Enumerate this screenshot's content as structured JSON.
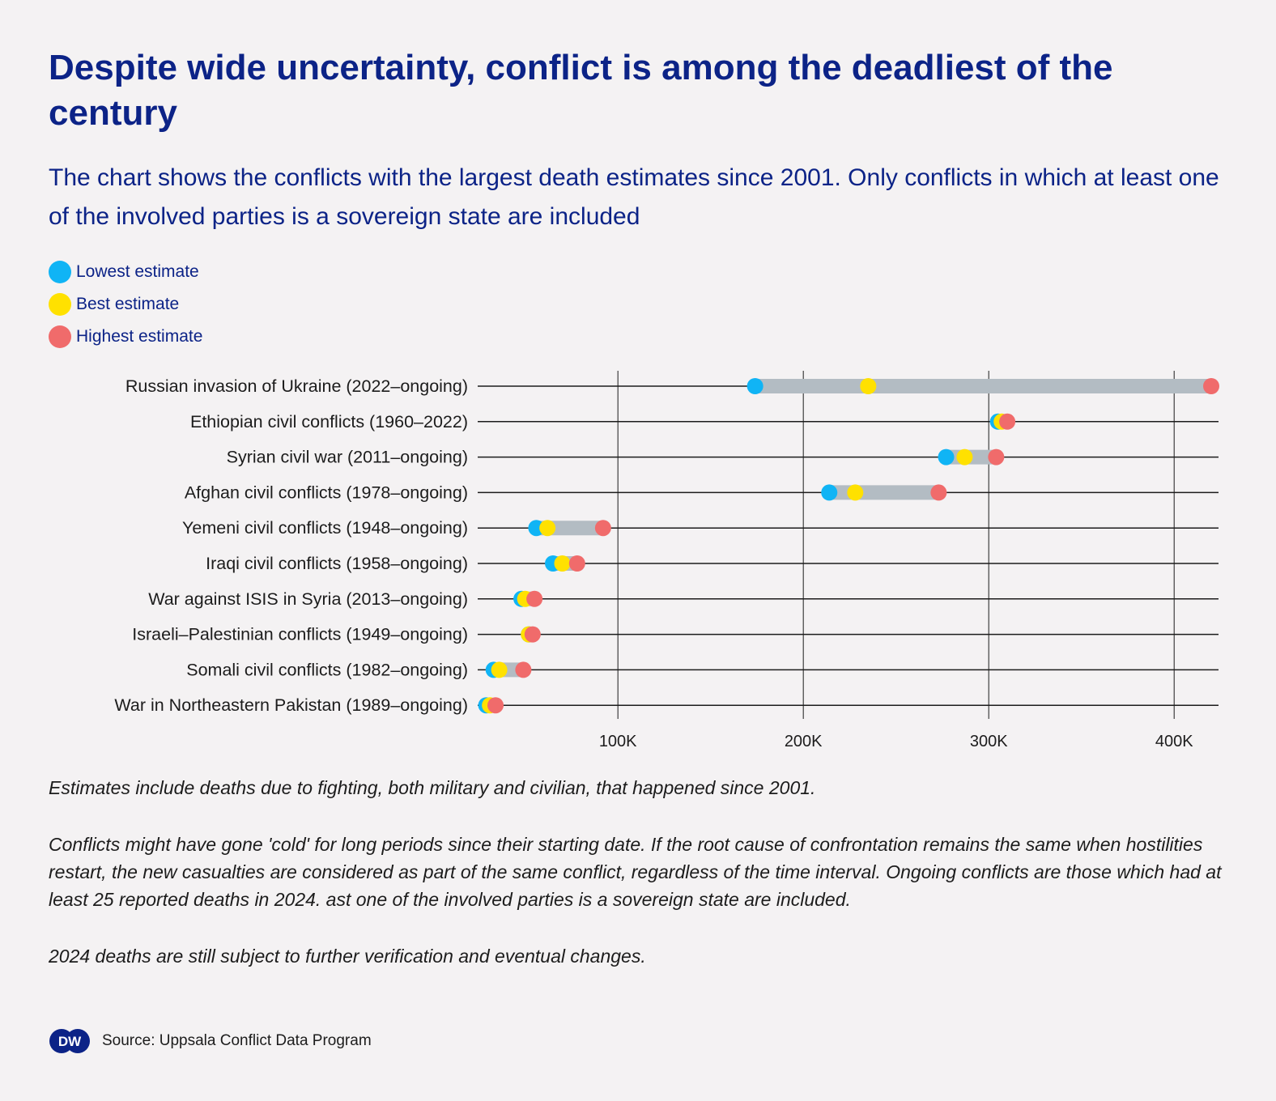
{
  "title": "Despite wide uncertainty, conflict is among the deadliest of the century",
  "subtitle": "The chart shows the conflicts with the largest death estimates since 2001. Only conflicts in which at least one of the involved parties is a sovereign state are included",
  "colors": {
    "lowest": "#10b4f5",
    "best": "#ffe100",
    "highest": "#f06b6b",
    "range_bar": "#b3bcc3",
    "title": "#0c2387",
    "background": "#f4f2f3"
  },
  "chart_data": {
    "type": "dumbbell",
    "legend": [
      {
        "key": "lowest",
        "label": "Lowest estimate"
      },
      {
        "key": "best",
        "label": "Best estimate"
      },
      {
        "key": "highest",
        "label": "Highest estimate"
      }
    ],
    "legend_position": "top-left",
    "xlim": [
      27000,
      420000
    ],
    "xticks": [
      100000,
      200000,
      300000,
      400000
    ],
    "xtick_labels": [
      "100K",
      "200K",
      "300K",
      "400K"
    ],
    "grid": "vertical",
    "rows": [
      {
        "label": "Russian invasion of Ukraine (2022–ongoing)",
        "lowest": 174000,
        "best": 235000,
        "highest": 420000
      },
      {
        "label": "Ethiopian civil conflicts (1960–2022)",
        "lowest": 305000,
        "best": 307000,
        "highest": 310000
      },
      {
        "label": "Syrian civil war (2011–ongoing)",
        "lowest": 277000,
        "best": 287000,
        "highest": 304000
      },
      {
        "label": "Afghan civil conflicts (1978–ongoing)",
        "lowest": 214000,
        "best": 228000,
        "highest": 273000
      },
      {
        "label": "Yemeni civil conflicts (1948–ongoing)",
        "lowest": 56000,
        "best": 62000,
        "highest": 92000
      },
      {
        "label": "Iraqi civil conflicts (1958–ongoing)",
        "lowest": 65000,
        "best": 70000,
        "highest": 78000
      },
      {
        "label": "War against ISIS in Syria (2013–ongoing)",
        "lowest": 48000,
        "best": 50000,
        "highest": 55000
      },
      {
        "label": "Israeli–Palestinian conflicts (1949–ongoing)",
        "lowest": 52000,
        "best": 52000,
        "highest": 54000
      },
      {
        "label": "Somali civil conflicts (1982–ongoing)",
        "lowest": 33000,
        "best": 36000,
        "highest": 49000
      },
      {
        "label": "War in Northeastern Pakistan (1989–ongoing)",
        "lowest": 29000,
        "best": 31000,
        "highest": 34000
      }
    ]
  },
  "notes": [
    "Estimates include deaths due to fighting, both military and civilian, that happened since 2001.",
    "Conflicts might have gone 'cold' for long periods since their starting date. If the root cause of confrontation remains the same when hostilities restart, the new casualties are considered as part of the same conflict, regardless of the time interval. Ongoing conflicts are those which had at least 25 reported deaths in 2024. ast one of the involved parties is a sovereign state are included.",
    "2024 deaths are still subject to further verification and eventual changes."
  ],
  "source": "Source: Uppsala Conflict Data Program",
  "logo": {
    "icon": "dw-logo-icon",
    "text": "DW"
  }
}
